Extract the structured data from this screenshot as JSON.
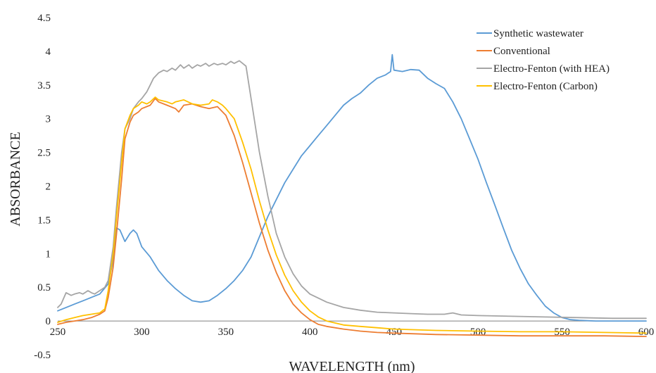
{
  "chart_data": {
    "type": "line",
    "xlabel": "WAVELENGTH (nm)",
    "ylabel": "ABSORBANCE",
    "xlim": [
      250,
      600
    ],
    "ylim": [
      -0.5,
      4.5
    ],
    "xticks": [
      250,
      300,
      350,
      400,
      450,
      500,
      550,
      600
    ],
    "yticks": [
      -0.5,
      0,
      0.5,
      1,
      1.5,
      2,
      2.5,
      3,
      3.5,
      4,
      4.5
    ],
    "ytick_labels": [
      "-0.5",
      "0",
      "0.5",
      "1",
      "1.5",
      "2",
      "2.5",
      "3",
      "3.5",
      "4",
      "4.5"
    ],
    "grid": false,
    "legend": "top-right",
    "series": [
      {
        "name": "Synthetic wastewater",
        "color": "#5B9BD5",
        "points": [
          [
            250,
            0.15
          ],
          [
            255,
            0.2
          ],
          [
            260,
            0.25
          ],
          [
            265,
            0.3
          ],
          [
            270,
            0.35
          ],
          [
            275,
            0.4
          ],
          [
            280,
            0.55
          ],
          [
            283,
            0.9
          ],
          [
            285,
            1.38
          ],
          [
            287,
            1.35
          ],
          [
            290,
            1.18
          ],
          [
            293,
            1.3
          ],
          [
            295,
            1.35
          ],
          [
            297,
            1.3
          ],
          [
            300,
            1.1
          ],
          [
            305,
            0.95
          ],
          [
            310,
            0.75
          ],
          [
            315,
            0.6
          ],
          [
            320,
            0.48
          ],
          [
            325,
            0.38
          ],
          [
            330,
            0.3
          ],
          [
            335,
            0.28
          ],
          [
            340,
            0.3
          ],
          [
            345,
            0.38
          ],
          [
            350,
            0.48
          ],
          [
            355,
            0.6
          ],
          [
            360,
            0.75
          ],
          [
            365,
            0.95
          ],
          [
            370,
            1.25
          ],
          [
            375,
            1.55
          ],
          [
            380,
            1.8
          ],
          [
            385,
            2.05
          ],
          [
            390,
            2.25
          ],
          [
            395,
            2.45
          ],
          [
            400,
            2.6
          ],
          [
            405,
            2.75
          ],
          [
            410,
            2.9
          ],
          [
            415,
            3.05
          ],
          [
            420,
            3.2
          ],
          [
            425,
            3.3
          ],
          [
            430,
            3.38
          ],
          [
            435,
            3.5
          ],
          [
            440,
            3.6
          ],
          [
            445,
            3.65
          ],
          [
            448,
            3.7
          ],
          [
            449,
            3.95
          ],
          [
            450,
            3.72
          ],
          [
            455,
            3.7
          ],
          [
            460,
            3.73
          ],
          [
            465,
            3.72
          ],
          [
            470,
            3.6
          ],
          [
            475,
            3.52
          ],
          [
            480,
            3.45
          ],
          [
            485,
            3.25
          ],
          [
            490,
            3.0
          ],
          [
            495,
            2.7
          ],
          [
            500,
            2.4
          ],
          [
            505,
            2.05
          ],
          [
            510,
            1.72
          ],
          [
            515,
            1.38
          ],
          [
            520,
            1.05
          ],
          [
            525,
            0.78
          ],
          [
            530,
            0.55
          ],
          [
            535,
            0.38
          ],
          [
            540,
            0.22
          ],
          [
            545,
            0.12
          ],
          [
            550,
            0.05
          ],
          [
            555,
            0.02
          ],
          [
            560,
            0.01
          ],
          [
            570,
            0.0
          ],
          [
            580,
            0.0
          ],
          [
            590,
            0.0
          ],
          [
            600,
            0.0
          ]
        ]
      },
      {
        "name": "Conventional",
        "color": "#ED7D31",
        "points": [
          [
            250,
            -0.05
          ],
          [
            255,
            -0.02
          ],
          [
            260,
            0.0
          ],
          [
            265,
            0.02
          ],
          [
            270,
            0.05
          ],
          [
            275,
            0.1
          ],
          [
            278,
            0.15
          ],
          [
            280,
            0.35
          ],
          [
            283,
            0.8
          ],
          [
            285,
            1.3
          ],
          [
            288,
            2.1
          ],
          [
            290,
            2.7
          ],
          [
            293,
            2.95
          ],
          [
            295,
            3.05
          ],
          [
            298,
            3.1
          ],
          [
            300,
            3.15
          ],
          [
            305,
            3.2
          ],
          [
            308,
            3.3
          ],
          [
            310,
            3.25
          ],
          [
            315,
            3.2
          ],
          [
            320,
            3.15
          ],
          [
            322,
            3.1
          ],
          [
            325,
            3.2
          ],
          [
            330,
            3.22
          ],
          [
            335,
            3.18
          ],
          [
            340,
            3.15
          ],
          [
            345,
            3.18
          ],
          [
            350,
            3.05
          ],
          [
            355,
            2.75
          ],
          [
            360,
            2.35
          ],
          [
            365,
            1.9
          ],
          [
            370,
            1.45
          ],
          [
            375,
            1.05
          ],
          [
            380,
            0.72
          ],
          [
            385,
            0.45
          ],
          [
            390,
            0.25
          ],
          [
            395,
            0.12
          ],
          [
            400,
            0.02
          ],
          [
            405,
            -0.05
          ],
          [
            410,
            -0.08
          ],
          [
            420,
            -0.12
          ],
          [
            430,
            -0.15
          ],
          [
            440,
            -0.17
          ],
          [
            450,
            -0.18
          ],
          [
            475,
            -0.2
          ],
          [
            500,
            -0.21
          ],
          [
            525,
            -0.22
          ],
          [
            550,
            -0.22
          ],
          [
            575,
            -0.22
          ],
          [
            600,
            -0.23
          ]
        ]
      },
      {
        "name": "Electro-Fenton (with HEA)",
        "color": "#A5A5A5",
        "points": [
          [
            250,
            0.2
          ],
          [
            252,
            0.25
          ],
          [
            255,
            0.42
          ],
          [
            258,
            0.38
          ],
          [
            260,
            0.4
          ],
          [
            263,
            0.42
          ],
          [
            265,
            0.4
          ],
          [
            268,
            0.45
          ],
          [
            270,
            0.42
          ],
          [
            272,
            0.4
          ],
          [
            275,
            0.45
          ],
          [
            278,
            0.5
          ],
          [
            280,
            0.6
          ],
          [
            283,
            1.1
          ],
          [
            285,
            1.7
          ],
          [
            288,
            2.5
          ],
          [
            290,
            2.85
          ],
          [
            293,
            3.0
          ],
          [
            295,
            3.15
          ],
          [
            298,
            3.25
          ],
          [
            300,
            3.3
          ],
          [
            303,
            3.4
          ],
          [
            305,
            3.5
          ],
          [
            307,
            3.6
          ],
          [
            310,
            3.68
          ],
          [
            313,
            3.72
          ],
          [
            315,
            3.7
          ],
          [
            318,
            3.75
          ],
          [
            320,
            3.72
          ],
          [
            323,
            3.8
          ],
          [
            325,
            3.75
          ],
          [
            328,
            3.8
          ],
          [
            330,
            3.75
          ],
          [
            333,
            3.8
          ],
          [
            335,
            3.78
          ],
          [
            338,
            3.82
          ],
          [
            340,
            3.78
          ],
          [
            343,
            3.82
          ],
          [
            345,
            3.8
          ],
          [
            348,
            3.82
          ],
          [
            350,
            3.8
          ],
          [
            353,
            3.85
          ],
          [
            355,
            3.82
          ],
          [
            358,
            3.86
          ],
          [
            360,
            3.82
          ],
          [
            362,
            3.78
          ],
          [
            365,
            3.3
          ],
          [
            370,
            2.5
          ],
          [
            375,
            1.85
          ],
          [
            380,
            1.3
          ],
          [
            385,
            0.95
          ],
          [
            390,
            0.7
          ],
          [
            395,
            0.52
          ],
          [
            400,
            0.4
          ],
          [
            410,
            0.28
          ],
          [
            420,
            0.2
          ],
          [
            430,
            0.16
          ],
          [
            440,
            0.13
          ],
          [
            450,
            0.12
          ],
          [
            460,
            0.11
          ],
          [
            470,
            0.1
          ],
          [
            480,
            0.1
          ],
          [
            485,
            0.12
          ],
          [
            490,
            0.09
          ],
          [
            500,
            0.08
          ],
          [
            520,
            0.07
          ],
          [
            540,
            0.06
          ],
          [
            560,
            0.05
          ],
          [
            580,
            0.04
          ],
          [
            600,
            0.04
          ]
        ]
      },
      {
        "name": "Electro-Fenton (Carbon)",
        "color": "#FFC000",
        "points": [
          [
            250,
            -0.02
          ],
          [
            255,
            0.02
          ],
          [
            260,
            0.05
          ],
          [
            265,
            0.08
          ],
          [
            270,
            0.1
          ],
          [
            275,
            0.12
          ],
          [
            278,
            0.18
          ],
          [
            280,
            0.45
          ],
          [
            283,
            1.0
          ],
          [
            285,
            1.55
          ],
          [
            288,
            2.35
          ],
          [
            290,
            2.85
          ],
          [
            293,
            3.05
          ],
          [
            295,
            3.15
          ],
          [
            298,
            3.2
          ],
          [
            300,
            3.25
          ],
          [
            303,
            3.22
          ],
          [
            305,
            3.25
          ],
          [
            308,
            3.32
          ],
          [
            310,
            3.28
          ],
          [
            315,
            3.25
          ],
          [
            318,
            3.22
          ],
          [
            320,
            3.25
          ],
          [
            325,
            3.28
          ],
          [
            330,
            3.22
          ],
          [
            335,
            3.2
          ],
          [
            340,
            3.22
          ],
          [
            342,
            3.28
          ],
          [
            345,
            3.25
          ],
          [
            348,
            3.2
          ],
          [
            350,
            3.15
          ],
          [
            355,
            3.0
          ],
          [
            360,
            2.65
          ],
          [
            365,
            2.25
          ],
          [
            370,
            1.78
          ],
          [
            375,
            1.35
          ],
          [
            380,
            0.98
          ],
          [
            385,
            0.68
          ],
          [
            390,
            0.45
          ],
          [
            395,
            0.28
          ],
          [
            400,
            0.15
          ],
          [
            405,
            0.06
          ],
          [
            410,
            0.0
          ],
          [
            420,
            -0.06
          ],
          [
            430,
            -0.08
          ],
          [
            440,
            -0.1
          ],
          [
            450,
            -0.12
          ],
          [
            475,
            -0.14
          ],
          [
            500,
            -0.15
          ],
          [
            525,
            -0.16
          ],
          [
            550,
            -0.16
          ],
          [
            575,
            -0.17
          ],
          [
            600,
            -0.18
          ]
        ]
      }
    ]
  }
}
